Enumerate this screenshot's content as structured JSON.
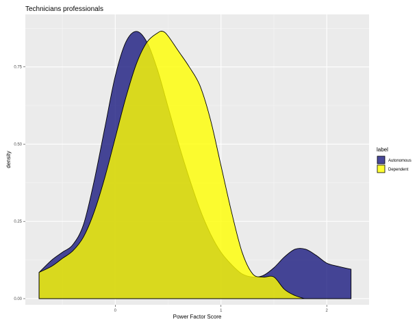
{
  "chart_data": {
    "type": "area",
    "title": "Technicians professionals",
    "xlabel": "Power Factor Score",
    "ylabel": "density",
    "xlim": [
      -0.85,
      2.4
    ],
    "ylim": [
      -0.02,
      0.92
    ],
    "x_ticks": [
      {
        "value": 0,
        "label": "0"
      },
      {
        "value": 1,
        "label": "1"
      },
      {
        "value": 2,
        "label": "2"
      }
    ],
    "y_ticks": [
      {
        "value": 0.0,
        "label": "0.00"
      },
      {
        "value": 0.25,
        "label": "0.25"
      },
      {
        "value": 0.5,
        "label": "0.50"
      },
      {
        "value": 0.75,
        "label": "0.75"
      }
    ],
    "grid": true,
    "legend": {
      "title": "label",
      "position": "right"
    },
    "series": [
      {
        "name": "Autonomous",
        "color": "#1a1a80",
        "x": [
          -0.72,
          -0.6,
          -0.5,
          -0.4,
          -0.3,
          -0.2,
          -0.1,
          0.0,
          0.1,
          0.2,
          0.3,
          0.4,
          0.5,
          0.6,
          0.7,
          0.8,
          0.9,
          1.0,
          1.1,
          1.2,
          1.3,
          1.4,
          1.5,
          1.6,
          1.7,
          1.8,
          1.9,
          2.0,
          2.1,
          2.23
        ],
        "y": [
          0.085,
          0.125,
          0.15,
          0.175,
          0.24,
          0.38,
          0.55,
          0.72,
          0.83,
          0.865,
          0.83,
          0.74,
          0.62,
          0.5,
          0.39,
          0.29,
          0.21,
          0.15,
          0.11,
          0.08,
          0.07,
          0.075,
          0.1,
          0.135,
          0.16,
          0.16,
          0.14,
          0.115,
          0.105,
          0.095
        ]
      },
      {
        "name": "Dependent",
        "color": "#ffff00",
        "x": [
          -0.72,
          -0.6,
          -0.5,
          -0.4,
          -0.3,
          -0.2,
          -0.1,
          0.0,
          0.1,
          0.2,
          0.3,
          0.4,
          0.45,
          0.5,
          0.6,
          0.7,
          0.8,
          0.9,
          1.0,
          1.1,
          1.2,
          1.3,
          1.4,
          1.5,
          1.6,
          1.7,
          1.79
        ],
        "y": [
          0.085,
          0.105,
          0.13,
          0.155,
          0.2,
          0.28,
          0.39,
          0.52,
          0.65,
          0.76,
          0.83,
          0.86,
          0.865,
          0.85,
          0.8,
          0.75,
          0.69,
          0.58,
          0.43,
          0.28,
          0.15,
          0.08,
          0.07,
          0.07,
          0.03,
          0.01,
          0.0
        ]
      }
    ]
  }
}
